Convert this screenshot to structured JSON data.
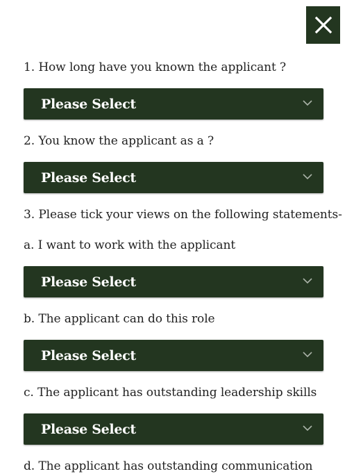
{
  "close": {
    "icon": "close-x-icon"
  },
  "questions": [
    {
      "label": "1. How long have you known the applicant ?"
    },
    {
      "label": "2. You know the applicant as a ?"
    },
    {
      "label": "3. Please tick your views on the following statements-"
    },
    {
      "label": "a. I want to work with the applicant"
    },
    {
      "label": "b. The applicant can do this role"
    },
    {
      "label": "c. The applicant has outstanding leadership skills"
    },
    {
      "label": "d. The applicant has outstanding communication"
    }
  ],
  "selects": [
    {
      "value": "Please Select"
    },
    {
      "value": "Please Select"
    },
    {
      "value": "Please Select"
    },
    {
      "value": "Please Select"
    },
    {
      "value": "Please Select"
    }
  ],
  "colors": {
    "accent": "#233620",
    "text": "#222222",
    "select_text": "#ffffff"
  }
}
